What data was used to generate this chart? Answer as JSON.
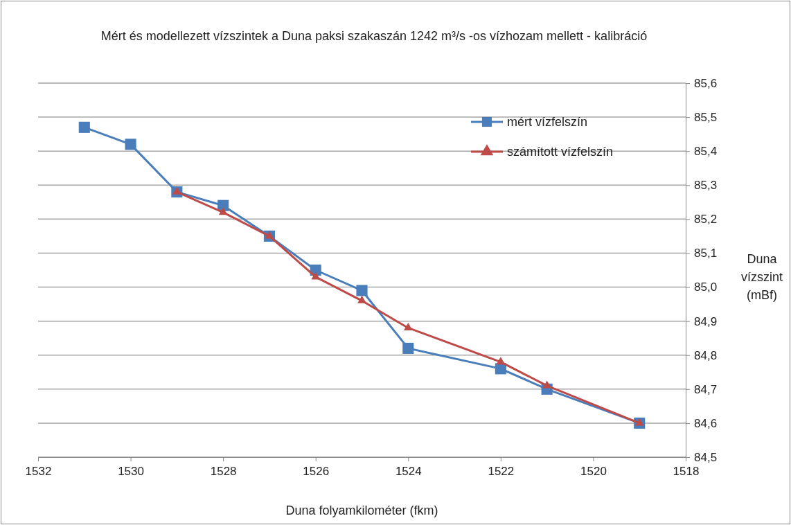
{
  "chart_data": {
    "type": "line",
    "title": "Mért és modellezett vízszintek  a Duna paksi szakaszán  1242 m³/s -os vízhozam  mellett - kalibráció",
    "xlabel": "Duna folyamkilométer (fkm)",
    "ylabel": "Duna vízszint (mBf)",
    "xlim": [
      1532,
      1518
    ],
    "xticks": [
      1532,
      1530,
      1528,
      1526,
      1524,
      1522,
      1520,
      1518
    ],
    "ylim": [
      84.5,
      85.6
    ],
    "yticks": [
      {
        "value": 84.5,
        "label": "84,5"
      },
      {
        "value": 84.6,
        "label": "84,6"
      },
      {
        "value": 84.7,
        "label": "84,7"
      },
      {
        "value": 84.8,
        "label": "84,8"
      },
      {
        "value": 84.9,
        "label": "84,9"
      },
      {
        "value": 85.0,
        "label": "85,0"
      },
      {
        "value": 85.1,
        "label": "85,1"
      },
      {
        "value": 85.2,
        "label": "85,2"
      },
      {
        "value": 85.3,
        "label": "85,3"
      },
      {
        "value": 85.4,
        "label": "85,4"
      },
      {
        "value": 85.5,
        "label": "85,5"
      },
      {
        "value": 85.6,
        "label": "85,6"
      }
    ],
    "grid": "y",
    "legend": "top right",
    "line_style": "solid",
    "series": [
      {
        "name": "mért vízfelszín",
        "color": "#4a7ebb",
        "marker": "square",
        "x": [
          1531,
          1530,
          1529,
          1528,
          1527,
          1526,
          1525,
          1524,
          1522,
          1521,
          1519
        ],
        "values": [
          85.47,
          85.42,
          85.28,
          85.24,
          85.15,
          85.05,
          84.99,
          84.82,
          84.76,
          84.7,
          84.6
        ]
      },
      {
        "name": "számított vízfelszín",
        "color": "#be4b48",
        "marker": "triangle",
        "x": [
          1529,
          1528,
          1527,
          1526,
          1525,
          1524,
          1522,
          1521,
          1519
        ],
        "values": [
          85.28,
          85.22,
          85.15,
          85.03,
          84.96,
          84.88,
          84.78,
          84.71,
          84.6
        ]
      }
    ]
  }
}
